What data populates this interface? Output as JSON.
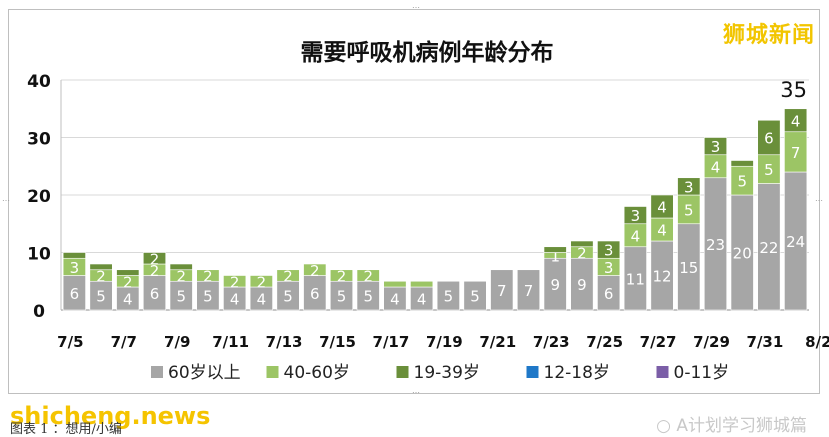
{
  "chart_data": {
    "type": "bar",
    "stacked": true,
    "title": "需要呼吸机病例年龄分布",
    "categories": [
      "7/5",
      "7/6",
      "7/7",
      "7/8",
      "7/9",
      "7/10",
      "7/11",
      "7/12",
      "7/13",
      "7/14",
      "7/15",
      "7/16",
      "7/17",
      "7/18",
      "7/19",
      "7/20",
      "7/21",
      "7/22",
      "7/23",
      "7/24",
      "7/25",
      "7/26",
      "7/27",
      "7/28",
      "7/29",
      "7/30",
      "7/31",
      "8/1"
    ],
    "x_tick_labels": [
      "7/5",
      "7/7",
      "7/9",
      "7/11",
      "7/13",
      "7/15",
      "7/17",
      "7/19",
      "7/21",
      "7/23",
      "7/25",
      "7/27",
      "7/29",
      "7/31",
      "8/2"
    ],
    "ylim": [
      0,
      40
    ],
    "yticks": [
      0,
      10,
      20,
      30,
      40
    ],
    "grid": true,
    "legend_position": "bottom",
    "series": [
      {
        "name": "60岁以上",
        "color": "#a6a6a6",
        "values": [
          6,
          5,
          4,
          6,
          5,
          5,
          4,
          4,
          5,
          6,
          5,
          5,
          4,
          4,
          5,
          5,
          7,
          7,
          9,
          9,
          6,
          11,
          12,
          15,
          23,
          20,
          22,
          24
        ],
        "labels": [
          "6",
          "5",
          "4",
          "6",
          "5",
          "5",
          "4",
          "4",
          "5",
          "6",
          "5",
          "5",
          "4",
          "4",
          "5",
          "5",
          "7",
          "7",
          "9",
          "9",
          "6",
          "11",
          "12",
          "15",
          "23",
          "20",
          "22",
          "24"
        ]
      },
      {
        "name": "40-60岁",
        "color": "#9cc565",
        "values": [
          3,
          2,
          2,
          2,
          2,
          2,
          2,
          2,
          2,
          2,
          2,
          2,
          1,
          1,
          0,
          0,
          0,
          0,
          1,
          2,
          3,
          4,
          4,
          5,
          4,
          5,
          5,
          7
        ],
        "labels": [
          "3",
          "2",
          "2",
          "2",
          "2",
          "2",
          "2",
          "2",
          "2",
          "2",
          "2",
          "2",
          "",
          "",
          "",
          "",
          "",
          "",
          "1",
          "2",
          "3",
          "4",
          "4",
          "5",
          "4",
          "5",
          "5",
          "7"
        ]
      },
      {
        "name": "19-39岁",
        "color": "#6a8f3a",
        "values": [
          1,
          1,
          1,
          2,
          1,
          0,
          0,
          0,
          0,
          0,
          0,
          0,
          0,
          0,
          0,
          0,
          0,
          0,
          1,
          1,
          3,
          3,
          4,
          3,
          3,
          1,
          6,
          4
        ],
        "labels": [
          "",
          "",
          "",
          "2",
          "",
          "",
          "",
          "",
          "",
          "",
          "",
          "",
          "",
          "",
          "",
          "",
          "",
          "",
          "",
          "",
          "3",
          "3",
          "4",
          "3",
          "3",
          "",
          "6",
          "4"
        ]
      },
      {
        "name": "12-18岁",
        "color": "#1f78c8",
        "values": [
          0,
          0,
          0,
          0,
          0,
          0,
          0,
          0,
          0,
          0,
          0,
          0,
          0,
          0,
          0,
          0,
          0,
          0,
          0,
          0,
          0,
          0,
          0,
          0,
          0,
          0,
          0,
          0
        ],
        "labels": []
      },
      {
        "name": "0-11岁",
        "color": "#7b5ea7",
        "values": [
          0,
          0,
          0,
          0,
          0,
          0,
          0,
          0,
          0,
          0,
          0,
          0,
          0,
          0,
          0,
          0,
          0,
          0,
          0,
          0,
          0,
          0,
          0,
          0,
          0,
          0,
          0,
          0
        ],
        "labels": []
      }
    ],
    "annotations": [
      {
        "category": "8/1",
        "text": "35"
      }
    ]
  },
  "watermarks": {
    "brand": "狮城新闻",
    "site": "shicheng.news",
    "wechat": "A计划学习狮城篇"
  },
  "caption": "图表 1 ：想用/小编"
}
